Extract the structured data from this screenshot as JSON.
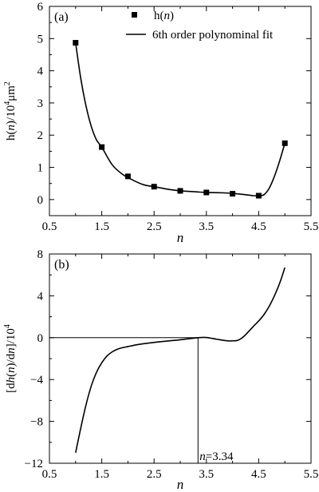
{
  "chart_data": [
    {
      "panel": "(a)",
      "type": "scatter",
      "xlabel": "n",
      "ylabel": "h(n)/10⁴μm²",
      "xlim": [
        0.5,
        5.5
      ],
      "ylim": [
        -0.5,
        6
      ],
      "xticks": [
        "0.5",
        "1.5",
        "2.5",
        "3.5",
        "4.5",
        "5.5"
      ],
      "yticks": [
        "0",
        "1",
        "2",
        "3",
        "4",
        "5",
        "6"
      ],
      "legend_position": "top-right",
      "series": [
        {
          "name": "h(n)",
          "kind": "markers",
          "x": [
            1.0,
            1.5,
            2.0,
            2.5,
            3.0,
            3.5,
            4.0,
            4.5,
            5.0
          ],
          "y": [
            4.87,
            1.63,
            0.72,
            0.4,
            0.27,
            0.22,
            0.18,
            0.12,
            1.75
          ]
        },
        {
          "name": "6th order polynominal fit",
          "kind": "line",
          "x": [
            1.0,
            1.1,
            1.2,
            1.3,
            1.4,
            1.5,
            1.7,
            1.9,
            2.1,
            2.3,
            2.5,
            2.8,
            3.0,
            3.3,
            3.5,
            3.8,
            4.0,
            4.2,
            4.4,
            4.5,
            4.6,
            4.7,
            4.8,
            4.9,
            5.0
          ],
          "y": [
            4.87,
            3.75,
            2.9,
            2.27,
            1.85,
            1.63,
            1.08,
            0.78,
            0.6,
            0.46,
            0.4,
            0.31,
            0.27,
            0.24,
            0.22,
            0.21,
            0.19,
            0.16,
            0.12,
            0.12,
            0.15,
            0.35,
            0.72,
            1.2,
            1.75
          ]
        }
      ]
    },
    {
      "panel": "(b)",
      "type": "line",
      "xlabel": "n",
      "ylabel": "[dh(n)/dn]/10⁴",
      "xlim": [
        0.5,
        5.5
      ],
      "ylim": [
        -12,
        8
      ],
      "xticks": [
        "0.5",
        "1.5",
        "2.5",
        "3.5",
        "4.5",
        "5.5"
      ],
      "yticks": [
        "8",
        "4",
        "0",
        "−4",
        "−8",
        "−12"
      ],
      "series": [
        {
          "name": "",
          "x": [
            1.0,
            1.1,
            1.2,
            1.3,
            1.4,
            1.5,
            1.6,
            1.7,
            1.8,
            1.9,
            2.0,
            2.2,
            2.5,
            2.8,
            3.0,
            3.2,
            3.34,
            3.5,
            3.7,
            3.9,
            4.0,
            4.1,
            4.2,
            4.3,
            4.4,
            4.5,
            4.6,
            4.7,
            4.8,
            4.9,
            5.0
          ],
          "y": [
            -11.0,
            -8.6,
            -6.4,
            -4.6,
            -3.3,
            -2.4,
            -1.75,
            -1.35,
            -1.1,
            -0.95,
            -0.85,
            -0.65,
            -0.45,
            -0.3,
            -0.2,
            -0.08,
            0.0,
            0.02,
            -0.15,
            -0.3,
            -0.3,
            -0.25,
            0.05,
            0.55,
            1.1,
            1.6,
            2.2,
            3.0,
            4.0,
            5.2,
            6.7
          ]
        }
      ],
      "hline_y": 0,
      "vline_x": 3.34,
      "annotation": "n=3.34"
    }
  ],
  "legend": {
    "marker_prefix": "h(",
    "marker_var": "n",
    "marker_suffix": ")",
    "line_label": "6th order polynominal fit"
  },
  "labels": {
    "a_ylabel_pre": "h(",
    "a_ylabel_var": "n",
    "a_ylabel_post": ")/10",
    "a_ylabel_exp": "4",
    "a_ylabel_unit": "μm",
    "a_ylabel_exp2": "2",
    "b_ylabel_pre": "[d",
    "b_ylabel_h": "h",
    "b_ylabel_mid": "(",
    "b_ylabel_n": "n",
    "b_ylabel_d": ")/d",
    "b_ylabel_n2": "n",
    "b_ylabel_post": "]/10",
    "b_ylabel_exp": "4",
    "annot_var": "n",
    "annot_val": "=3.34"
  },
  "colors": {
    "ink": "#000000",
    "background": "#ffffff"
  }
}
